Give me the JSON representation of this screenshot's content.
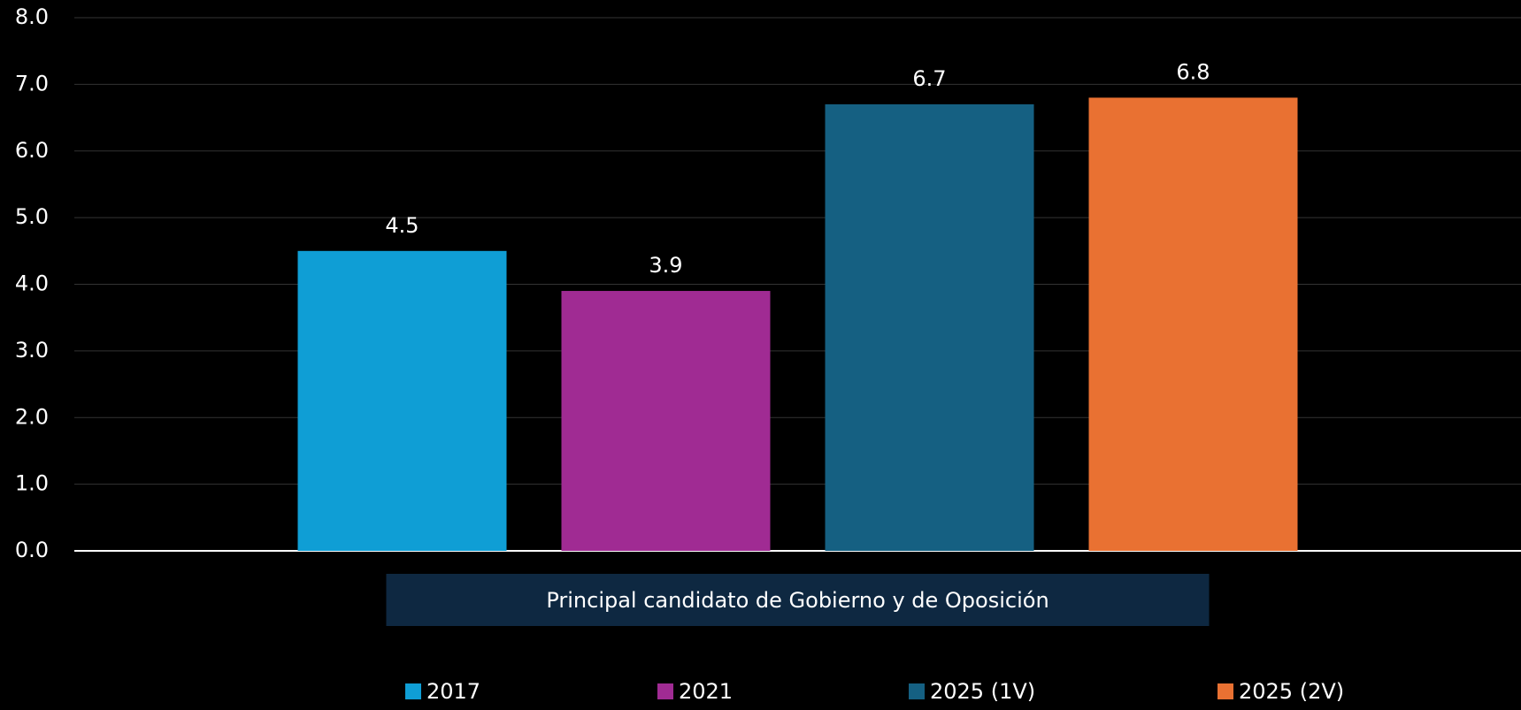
{
  "chart_data": {
    "type": "bar",
    "categories": [
      "Principal candidato de Gobierno y de Oposición"
    ],
    "series": [
      {
        "name": "2017",
        "color": "#0f9ed5",
        "values": [
          4.5
        ]
      },
      {
        "name": "2021",
        "color": "#a02b93",
        "values": [
          3.9
        ]
      },
      {
        "name": "2025 (1V)",
        "color": "#156082",
        "values": [
          6.7
        ]
      },
      {
        "name": "2025 (2V)",
        "color": "#e97132",
        "values": [
          6.8
        ]
      }
    ],
    "ylim": [
      0,
      8
    ],
    "yticks": [
      {
        "value": 0,
        "label": "0.0"
      },
      {
        "value": 1,
        "label": "1.0"
      },
      {
        "value": 2,
        "label": "2.0"
      },
      {
        "value": 3,
        "label": "3.0"
      },
      {
        "value": 4,
        "label": "4.0"
      },
      {
        "value": 5,
        "label": "5.0"
      },
      {
        "value": 6,
        "label": "6.0"
      },
      {
        "value": 7,
        "label": "7.0"
      },
      {
        "value": 8,
        "label": "8.0"
      }
    ],
    "grid": true,
    "legend": "bottom"
  }
}
